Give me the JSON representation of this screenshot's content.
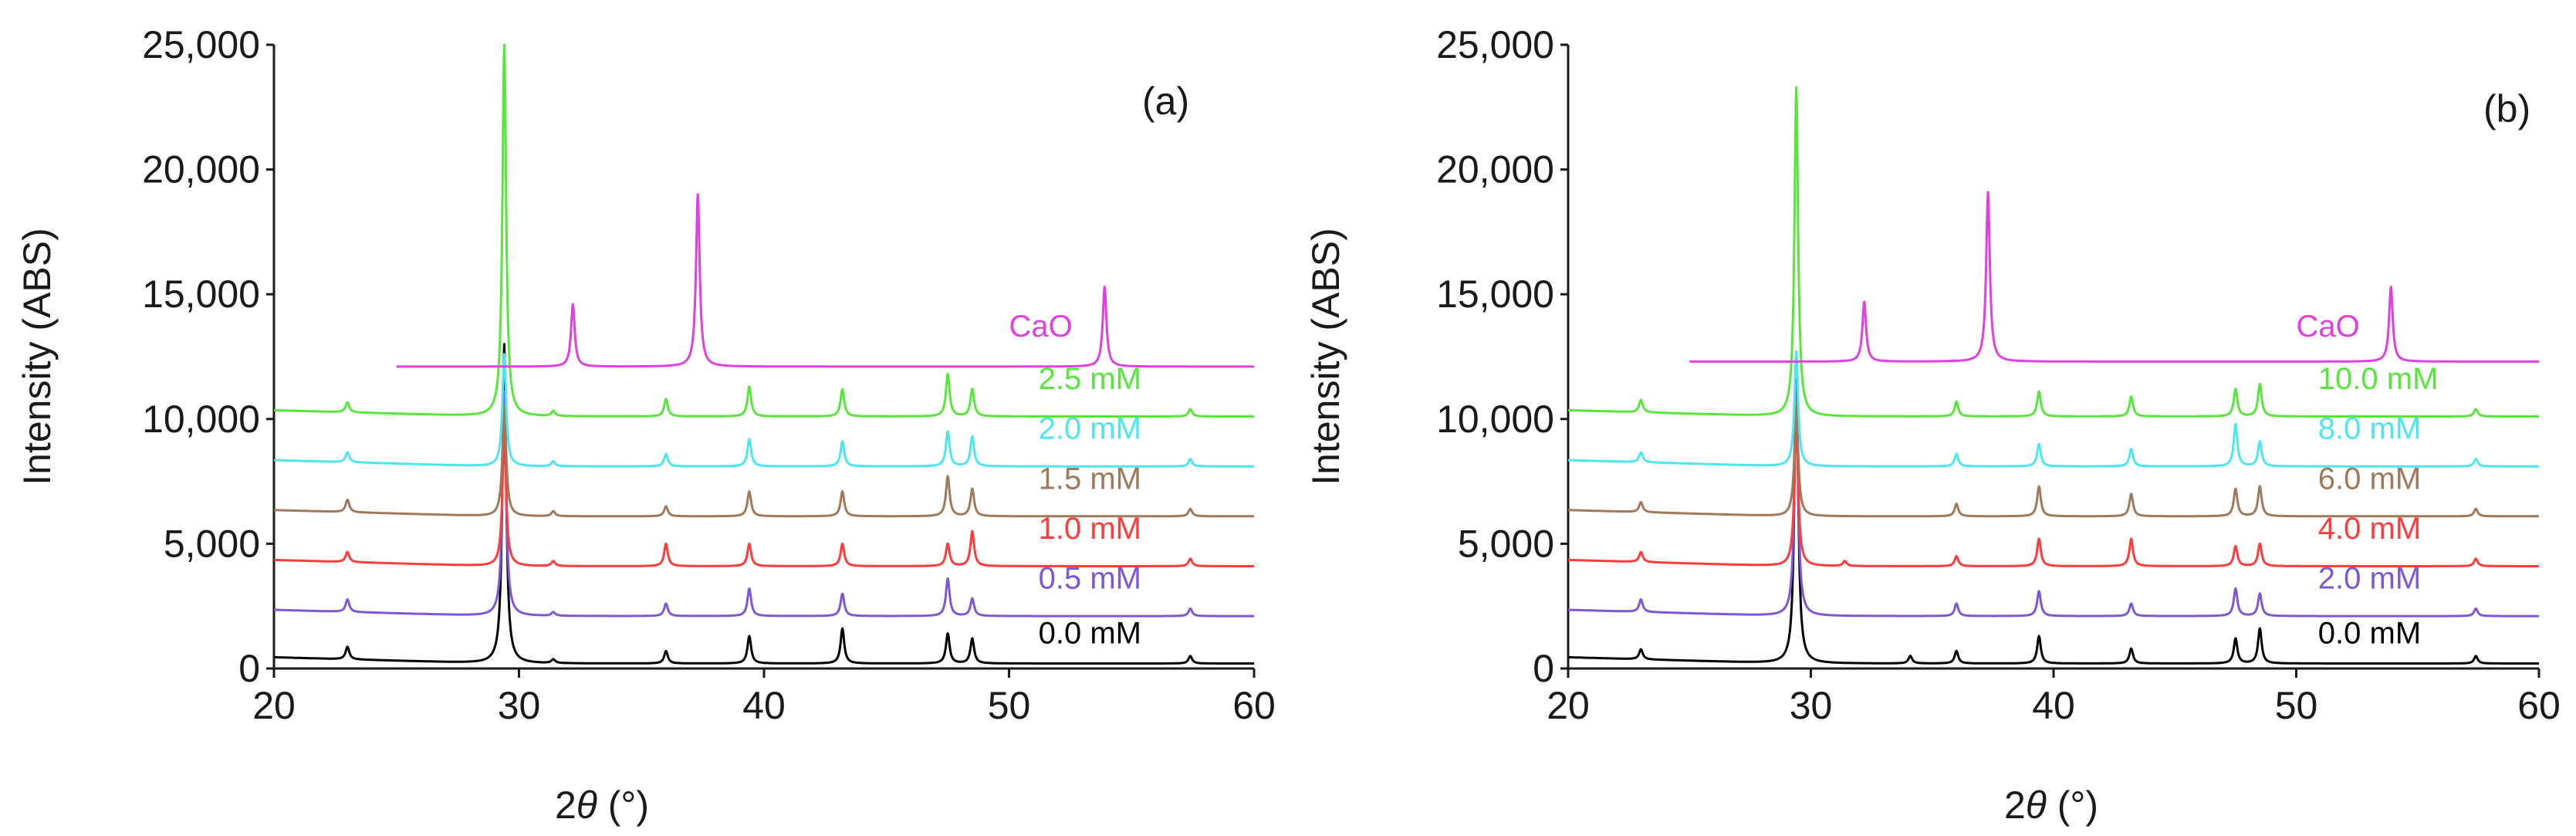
{
  "chart_data": [
    {
      "type": "line",
      "panel_label": "(a)",
      "xlabel_main": "2",
      "xlabel_theta": "θ",
      "xlabel_unit": " (°)",
      "ylabel": "Intensity (ABS)",
      "xlim": [
        20,
        60
      ],
      "ylim": [
        0,
        25000
      ],
      "x_ticks": [
        20,
        30,
        40,
        50,
        60
      ],
      "y_ticks": [
        0,
        5000,
        10000,
        15000,
        20000,
        25000
      ],
      "y_tick_labels": [
        "0",
        "5,000",
        "10,000",
        "15,000",
        "20,000",
        "25,000"
      ],
      "series": [
        {
          "name": "0.0 mM",
          "color": "#000000",
          "baseline": 200,
          "start": 20,
          "end": 60,
          "label_x": 51.2,
          "label_y": 1000,
          "peaks": [
            [
              23.0,
              500
            ],
            [
              29.4,
              12800
            ],
            [
              31.4,
              150
            ],
            [
              36.0,
              500
            ],
            [
              39.4,
              1100
            ],
            [
              43.2,
              1400
            ],
            [
              47.5,
              1200
            ],
            [
              48.5,
              1000
            ],
            [
              57.4,
              300
            ]
          ]
        },
        {
          "name": "0.5 mM",
          "color": "#7e57d6",
          "baseline": 2100,
          "start": 20,
          "end": 60,
          "label_x": 51.2,
          "label_y": 3200,
          "peaks": [
            [
              23.0,
              500
            ],
            [
              29.4,
              9000
            ],
            [
              31.4,
              150
            ],
            [
              36.0,
              500
            ],
            [
              39.4,
              1100
            ],
            [
              43.2,
              900
            ],
            [
              47.5,
              1500
            ],
            [
              48.5,
              700
            ],
            [
              57.4,
              300
            ]
          ]
        },
        {
          "name": "1.0 mM",
          "color": "#ff3b3b",
          "baseline": 4100,
          "start": 20,
          "end": 60,
          "label_x": 51.2,
          "label_y": 5200,
          "peaks": [
            [
              23.0,
              400
            ],
            [
              29.4,
              5300
            ],
            [
              31.4,
              200
            ],
            [
              36.0,
              900
            ],
            [
              39.4,
              900
            ],
            [
              43.2,
              900
            ],
            [
              47.5,
              900
            ],
            [
              48.5,
              1400
            ],
            [
              57.4,
              300
            ]
          ]
        },
        {
          "name": "1.5 mM",
          "color": "#a0785a",
          "baseline": 6100,
          "start": 20,
          "end": 60,
          "label_x": 51.2,
          "label_y": 7200,
          "peaks": [
            [
              23.0,
              500
            ],
            [
              29.4,
              4500
            ],
            [
              31.4,
              200
            ],
            [
              36.0,
              400
            ],
            [
              39.4,
              1000
            ],
            [
              43.2,
              1000
            ],
            [
              47.5,
              1600
            ],
            [
              48.5,
              1100
            ],
            [
              57.4,
              300
            ]
          ]
        },
        {
          "name": "2.0 mM",
          "color": "#4de6f0",
          "baseline": 8100,
          "start": 20,
          "end": 60,
          "label_x": 51.2,
          "label_y": 9200,
          "peaks": [
            [
              23.0,
              400
            ],
            [
              29.4,
              4500
            ],
            [
              31.4,
              200
            ],
            [
              36.0,
              500
            ],
            [
              39.4,
              1100
            ],
            [
              43.2,
              1000
            ],
            [
              47.5,
              1400
            ],
            [
              48.5,
              1200
            ],
            [
              57.4,
              300
            ]
          ]
        },
        {
          "name": "2.5 mM",
          "color": "#58e63c",
          "baseline": 10100,
          "start": 20,
          "end": 60,
          "label_x": 51.2,
          "label_y": 11200,
          "peaks": [
            [
              23.0,
              400
            ],
            [
              29.4,
              14900
            ],
            [
              31.4,
              200
            ],
            [
              36.0,
              700
            ],
            [
              39.4,
              1200
            ],
            [
              43.2,
              1100
            ],
            [
              47.5,
              1700
            ],
            [
              48.5,
              1100
            ],
            [
              57.4,
              300
            ]
          ]
        },
        {
          "name": "CaO",
          "color": "#e040e0",
          "baseline": 12100,
          "start": 25,
          "end": 60,
          "label_x": 50.0,
          "label_y": 13300,
          "peaks": [
            [
              32.2,
              2500
            ],
            [
              37.3,
              6900
            ],
            [
              53.9,
              3200
            ]
          ]
        }
      ]
    },
    {
      "type": "line",
      "panel_label": "(b)",
      "xlabel_main": "2",
      "xlabel_theta": "θ",
      "xlabel_unit": " (°)",
      "ylabel": "Intensity (ABS)",
      "xlim": [
        20,
        60
      ],
      "ylim": [
        0,
        25000
      ],
      "x_ticks": [
        20,
        30,
        40,
        50,
        60
      ],
      "y_ticks": [
        0,
        5000,
        10000,
        15000,
        20000,
        25000
      ],
      "y_tick_labels": [
        "0",
        "5,000",
        "10,000",
        "15,000",
        "20,000",
        "25,000"
      ],
      "series": [
        {
          "name": "0.0 mM",
          "color": "#000000",
          "baseline": 200,
          "start": 20,
          "end": 60,
          "label_x": 50.9,
          "label_y": 1000,
          "peaks": [
            [
              23.0,
              400
            ],
            [
              29.4,
              12500
            ],
            [
              34.1,
              300
            ],
            [
              36.0,
              500
            ],
            [
              39.4,
              1100
            ],
            [
              43.2,
              600
            ],
            [
              47.5,
              1000
            ],
            [
              48.5,
              1400
            ],
            [
              57.4,
              300
            ]
          ]
        },
        {
          "name": "2.0 mM",
          "color": "#7e57d6",
          "baseline": 2100,
          "start": 20,
          "end": 60,
          "label_x": 50.9,
          "label_y": 3200,
          "peaks": [
            [
              23.0,
              500
            ],
            [
              29.4,
              9300
            ],
            [
              36.0,
              500
            ],
            [
              39.4,
              1000
            ],
            [
              43.2,
              500
            ],
            [
              47.5,
              1100
            ],
            [
              48.5,
              900
            ],
            [
              57.4,
              300
            ]
          ]
        },
        {
          "name": "4.0 mM",
          "color": "#ff3b3b",
          "baseline": 4100,
          "start": 20,
          "end": 60,
          "label_x": 50.9,
          "label_y": 5200,
          "peaks": [
            [
              23.0,
              400
            ],
            [
              29.4,
              6000
            ],
            [
              31.4,
              200
            ],
            [
              36.0,
              400
            ],
            [
              39.4,
              1100
            ],
            [
              43.2,
              1100
            ],
            [
              47.5,
              800
            ],
            [
              48.5,
              900
            ],
            [
              57.4,
              300
            ]
          ]
        },
        {
          "name": "6.0 mM",
          "color": "#a0785a",
          "baseline": 6100,
          "start": 20,
          "end": 60,
          "label_x": 50.9,
          "label_y": 7200,
          "peaks": [
            [
              23.0,
              400
            ],
            [
              29.4,
              4600
            ],
            [
              36.0,
              500
            ],
            [
              39.4,
              1200
            ],
            [
              43.2,
              900
            ],
            [
              47.5,
              1100
            ],
            [
              48.5,
              1200
            ],
            [
              57.4,
              300
            ]
          ]
        },
        {
          "name": "8.0 mM",
          "color": "#4de6f0",
          "baseline": 8100,
          "start": 20,
          "end": 60,
          "label_x": 50.9,
          "label_y": 9200,
          "peaks": [
            [
              23.0,
              400
            ],
            [
              29.4,
              4600
            ],
            [
              36.0,
              500
            ],
            [
              39.4,
              900
            ],
            [
              43.2,
              700
            ],
            [
              47.5,
              1700
            ],
            [
              48.5,
              1000
            ],
            [
              57.4,
              300
            ]
          ]
        },
        {
          "name": "10.0 mM",
          "color": "#58e63c",
          "baseline": 10100,
          "start": 20,
          "end": 60,
          "label_x": 50.9,
          "label_y": 11200,
          "peaks": [
            [
              23.0,
              500
            ],
            [
              29.4,
              13200
            ],
            [
              36.0,
              600
            ],
            [
              39.4,
              1000
            ],
            [
              43.2,
              800
            ],
            [
              47.5,
              1100
            ],
            [
              48.5,
              1300
            ],
            [
              57.4,
              300
            ]
          ]
        },
        {
          "name": "CaO",
          "color": "#e040e0",
          "baseline": 12300,
          "start": 25,
          "end": 60,
          "label_x": 50.0,
          "label_y": 13300,
          "peaks": [
            [
              32.2,
              2400
            ],
            [
              37.3,
              6800
            ],
            [
              53.9,
              3000
            ]
          ]
        }
      ]
    }
  ]
}
